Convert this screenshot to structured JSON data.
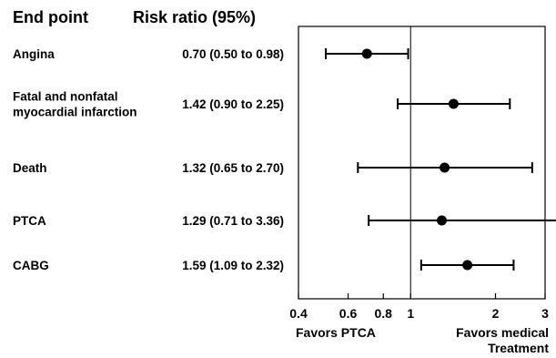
{
  "header": {
    "endpoint": "End point",
    "riskratio": "Risk ratio (95%)"
  },
  "favors": {
    "left": "Favors PTCA",
    "right_line1": "Favors medical",
    "right_line2": "Treatment"
  },
  "chart_data": {
    "type": "forest",
    "xscale": "log",
    "xlim": [
      0.4,
      3
    ],
    "xticks": [
      0.4,
      0.6,
      0.8,
      1,
      2,
      3
    ],
    "xticklabels": [
      "0.4",
      "0.6",
      "0.8",
      "1",
      "2",
      "3"
    ],
    "reference_line": 1,
    "grid": false,
    "rows": [
      {
        "endpoint": [
          "Angina"
        ],
        "ci_text": "0.70 (0.50 to 0.98)",
        "estimate": 0.7,
        "lower": 0.5,
        "upper": 0.98
      },
      {
        "endpoint": [
          "Fatal and nonfatal",
          "myocardial infarction"
        ],
        "ci_text": "1.42 (0.90 to 2.25)",
        "estimate": 1.42,
        "lower": 0.9,
        "upper": 2.25
      },
      {
        "endpoint": [
          "Death"
        ],
        "ci_text": "1.32 (0.65 to 2.70)",
        "estimate": 1.32,
        "lower": 0.65,
        "upper": 2.7
      },
      {
        "endpoint": [
          "PTCA"
        ],
        "ci_text": "1.29 (0.71 to 3.36)",
        "estimate": 1.29,
        "lower": 0.71,
        "upper": 3.36
      },
      {
        "endpoint": [
          "CABG"
        ],
        "ci_text": "1.59 (1.09 to 2.32)",
        "estimate": 1.59,
        "lower": 1.09,
        "upper": 2.32
      }
    ]
  }
}
